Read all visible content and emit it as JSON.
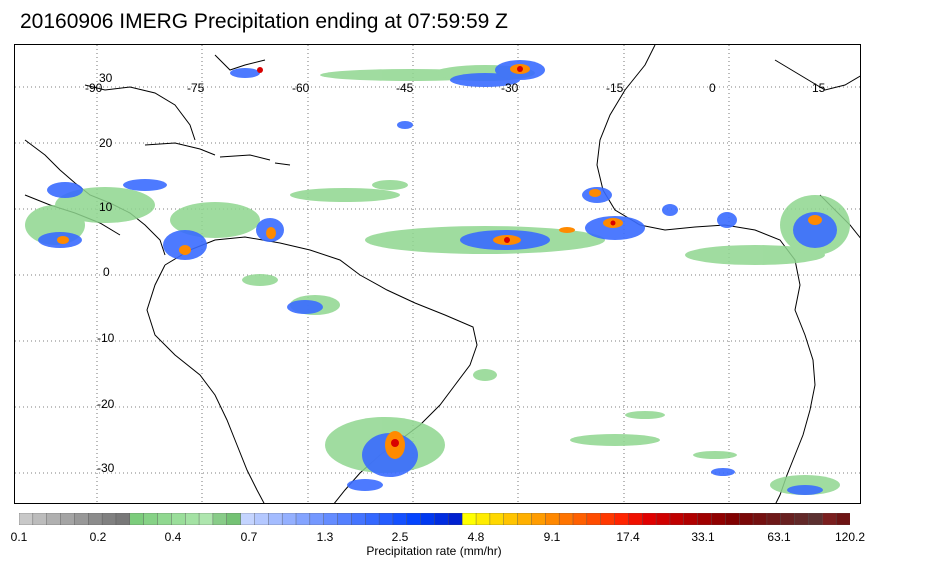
{
  "title": "20160906 IMERG Precipitation ending at 07:59:59 Z",
  "lon_labels": [
    "-90",
    "-75",
    "-60",
    "-45",
    "-30",
    "-15",
    "0",
    "15"
  ],
  "lat_labels": [
    "30",
    "20",
    "10",
    "0",
    "-10",
    "-20",
    "-30"
  ],
  "colorbar": {
    "title": "Precipitation rate (mm/hr)",
    "tick_labels": [
      "0.1",
      "0.2",
      "0.4",
      "0.7",
      "1.3",
      "2.5",
      "4.8",
      "9.1",
      "17.4",
      "33.1",
      "63.1",
      "120.2"
    ],
    "colors": [
      "#c8c8c8",
      "#bcbcbc",
      "#b0b0b0",
      "#a4a4a4",
      "#989898",
      "#8c8c8c",
      "#808080",
      "#787878",
      "#7ccc7c",
      "#86d286",
      "#90d890",
      "#9ade9a",
      "#a4e2a4",
      "#aee6ae",
      "#88cc88",
      "#74c274",
      "#c4d4ff",
      "#b4c8ff",
      "#a4bcff",
      "#94b0ff",
      "#84a4ff",
      "#7498ff",
      "#648cff",
      "#5480ff",
      "#4474ff",
      "#3468ff",
      "#245cff",
      "#1450ff",
      "#0444ff",
      "#0038f0",
      "#002ce0",
      "#0020d0",
      "#ffff00",
      "#ffec00",
      "#ffd800",
      "#ffc400",
      "#ffb000",
      "#ff9c00",
      "#ff8800",
      "#ff7400",
      "#ff6000",
      "#ff4c00",
      "#ff3800",
      "#ff2400",
      "#f01000",
      "#e00000",
      "#d00000",
      "#c00000",
      "#b00000",
      "#a00000",
      "#900000",
      "#800000",
      "#7a0808",
      "#741010",
      "#6e1818",
      "#682020",
      "#622828",
      "#5c3030",
      "#7a1e1e",
      "#6e1414"
    ]
  }
}
